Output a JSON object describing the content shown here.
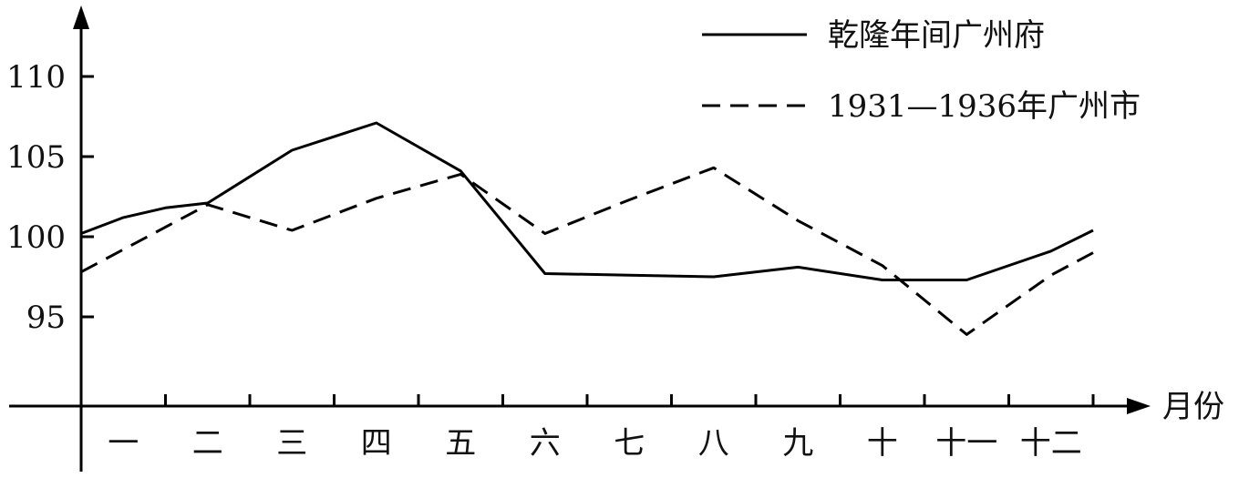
{
  "chart_data": {
    "type": "line",
    "categories": [
      "一",
      "二",
      "三",
      "四",
      "五",
      "六",
      "七",
      "八",
      "九",
      "十",
      "十一",
      "十二"
    ],
    "xlabel": "月份",
    "ylabel": "",
    "yticks": [
      95,
      100,
      105,
      110
    ],
    "ylim": [
      90,
      112
    ],
    "legend_position": "top-right",
    "series": [
      {
        "name": "乾隆年间广州府",
        "style": "solid",
        "x": [
          0.5,
          1,
          1.5,
          2,
          3,
          4,
          5,
          6,
          7,
          8,
          9,
          10,
          11,
          12,
          12.5
        ],
        "values": [
          100.2,
          101.2,
          101.8,
          102.1,
          105.4,
          107.1,
          104.1,
          97.7,
          97.6,
          97.5,
          98.1,
          97.3,
          97.3,
          99.1,
          100.4
        ]
      },
      {
        "name": "1931—1936年广州市",
        "style": "dashed",
        "x": [
          0.5,
          2,
          3,
          4,
          5,
          6,
          7,
          8,
          9,
          10,
          11,
          12,
          12.5
        ],
        "values": [
          97.8,
          102.0,
          100.4,
          102.4,
          103.9,
          100.2,
          102.3,
          104.3,
          101.0,
          98.2,
          93.9,
          97.6,
          99.0
        ]
      }
    ]
  }
}
